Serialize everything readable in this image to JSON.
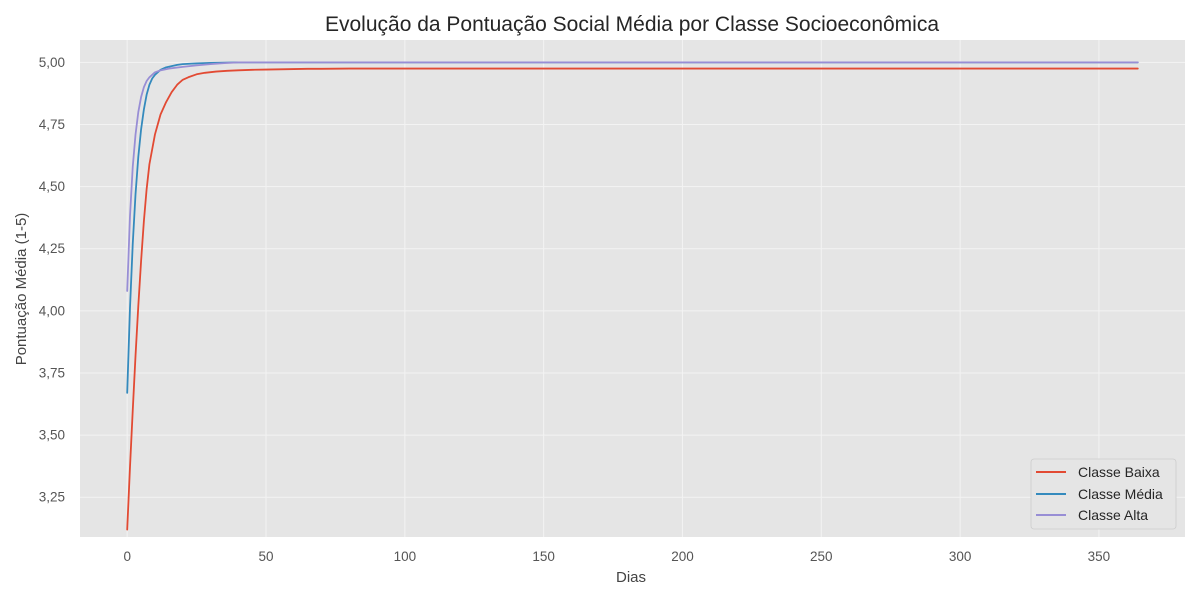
{
  "chart_data": {
    "type": "line",
    "title": "Evolução da Pontuação Social Média por Classe Socioeconômica",
    "xlabel": "Dias",
    "ylabel": "Pontuação Média (1-5)",
    "xlim": [
      -17,
      381
    ],
    "ylim": [
      3.09,
      5.09
    ],
    "xticks": [
      0,
      50,
      100,
      150,
      200,
      250,
      300,
      350
    ],
    "xtick_labels": [
      "0",
      "50",
      "100",
      "150",
      "200",
      "250",
      "300",
      "350"
    ],
    "yticks": [
      3.25,
      3.5,
      3.75,
      4.0,
      4.25,
      4.5,
      4.75,
      5.0
    ],
    "ytick_labels": [
      "3,25",
      "3,50",
      "3,75",
      "4,00",
      "4,25",
      "4,50",
      "4,75",
      "5,00"
    ],
    "grid": true,
    "legend_position": "lower-right",
    "series": [
      {
        "name": "Classe Baixa",
        "color": "#E24A33",
        "x": [
          0,
          1,
          2,
          3,
          4,
          5,
          6,
          7,
          8,
          10,
          12,
          14,
          16,
          18,
          20,
          22,
          25,
          28,
          32,
          36,
          40,
          45,
          50,
          55,
          60,
          65,
          70,
          80,
          100,
          150,
          200,
          250,
          300,
          364
        ],
        "y": [
          3.12,
          3.37,
          3.6,
          3.82,
          4.02,
          4.2,
          4.36,
          4.49,
          4.59,
          4.71,
          4.79,
          4.84,
          4.88,
          4.91,
          4.93,
          4.94,
          4.952,
          4.958,
          4.963,
          4.966,
          4.968,
          4.97,
          4.971,
          4.972,
          4.973,
          4.974,
          4.974,
          4.975,
          4.975,
          4.975,
          4.975,
          4.975,
          4.975,
          4.975
        ]
      },
      {
        "name": "Classe Média",
        "color": "#348ABD",
        "x": [
          0,
          1,
          2,
          3,
          4,
          5,
          6,
          7,
          8,
          9,
          10,
          12,
          14,
          16,
          18,
          20,
          25,
          30,
          40,
          364
        ],
        "y": [
          3.67,
          4.01,
          4.27,
          4.47,
          4.62,
          4.73,
          4.81,
          4.87,
          4.91,
          4.935,
          4.95,
          4.97,
          4.98,
          4.985,
          4.99,
          4.993,
          4.996,
          4.998,
          5.0,
          5.0
        ]
      },
      {
        "name": "Classe Alta",
        "color": "#988ED5",
        "x": [
          0,
          1,
          2,
          3,
          4,
          5,
          6,
          7,
          8,
          10,
          12,
          15,
          20,
          25,
          30,
          35,
          40,
          364
        ],
        "y": [
          4.08,
          4.38,
          4.58,
          4.71,
          4.8,
          4.86,
          4.9,
          4.925,
          4.94,
          4.96,
          4.968,
          4.975,
          4.982,
          4.988,
          4.993,
          4.997,
          5.0,
          5.0
        ]
      }
    ]
  }
}
